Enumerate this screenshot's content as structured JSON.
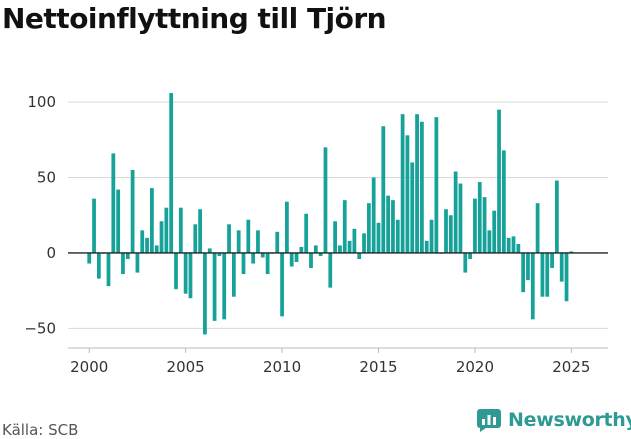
{
  "header": {
    "title": "Nettoinflyttning till Tjörn"
  },
  "footer": {
    "source": "Källa: SCB",
    "brand": "Newsworthy"
  },
  "colors": {
    "bar": "#16a199",
    "grid": "#d9d9d9",
    "zero_line": "#222222",
    "brand": "#2e9a93"
  },
  "chart_data": {
    "type": "bar",
    "title": "Nettoinflyttning till Tjörn",
    "xlabel": "",
    "ylabel": "",
    "frequency": "quarterly",
    "xlim": [
      1998.9,
      2026.9
    ],
    "ylim": [
      -63,
      112
    ],
    "yticks": [
      -50,
      0,
      50,
      100
    ],
    "xticks": [
      2000,
      2005,
      2010,
      2015,
      2020,
      2025
    ],
    "grid": true,
    "start_period": "2000 Q1",
    "values": [
      -7,
      36,
      -17,
      0,
      -22,
      66,
      42,
      -14,
      -4,
      55,
      -13,
      15,
      10,
      43,
      5,
      21,
      30,
      106,
      -24,
      30,
      -27,
      -30,
      19,
      29,
      -54,
      3,
      -45,
      -2,
      -44,
      19,
      -29,
      15,
      -14,
      22,
      -7,
      15,
      -3,
      -14,
      0,
      14,
      -42,
      34,
      -9,
      -6,
      4,
      26,
      -10,
      5,
      -2,
      70,
      -23,
      21,
      5,
      35,
      8,
      16,
      -4,
      13,
      33,
      50,
      20,
      84,
      38,
      35,
      22,
      92,
      78,
      60,
      92,
      87,
      8,
      22,
      90,
      0,
      29,
      25,
      54,
      46,
      -13,
      -4,
      36,
      47,
      37,
      15,
      28,
      95,
      68,
      10,
      11,
      6,
      -26,
      -18,
      -44,
      33,
      -29,
      -29,
      -10,
      48,
      -19,
      -32,
      1
    ]
  }
}
